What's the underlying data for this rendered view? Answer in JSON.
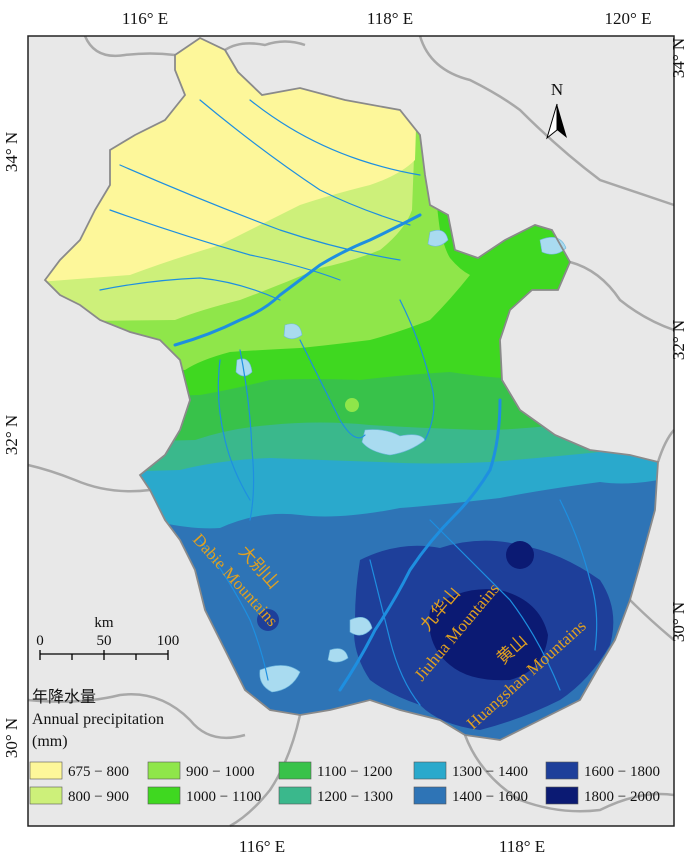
{
  "north_arrow": "N",
  "top_ticks": [
    "116° E",
    "118° E",
    "120° E"
  ],
  "bottom_ticks": [
    "116° E",
    "118° E"
  ],
  "left_ticks": [
    "34° N",
    "32° N",
    "30° N"
  ],
  "right_ticks": [
    "34° N",
    "32° N",
    "30° N"
  ],
  "scale": {
    "unit": "km",
    "labels": [
      "0",
      "50",
      "100"
    ]
  },
  "legend": {
    "title_cn": "年降水量",
    "title_en": "Annual precipitation",
    "unit": "(mm)",
    "classes": [
      {
        "label": "675 − 800",
        "color": "#fdf79a"
      },
      {
        "label": "800 − 900",
        "color": "#cdf07a"
      },
      {
        "label": "900 − 1000",
        "color": "#8fe64a"
      },
      {
        "label": "1000 − 1100",
        "color": "#3fd820"
      },
      {
        "label": "1100 − 1200",
        "color": "#38c24a"
      },
      {
        "label": "1200 − 1300",
        "color": "#3ab88c"
      },
      {
        "label": "1300 − 1400",
        "color": "#2aa9cc"
      },
      {
        "label": "1400 − 1600",
        "color": "#2e74b6"
      },
      {
        "label": "1600 − 1800",
        "color": "#1e3f9a"
      },
      {
        "label": "1800 − 2000",
        "color": "#0b1a73"
      }
    ]
  },
  "mountains": [
    {
      "cn": "大别山",
      "en": "Dabie Mountains"
    },
    {
      "cn": "九华山",
      "en": "Jiuhua Mountains"
    },
    {
      "cn": "黄山",
      "en": "Huangshan Mountains"
    }
  ],
  "colors": {
    "neighbor": "#e8e8e8",
    "border": "#aaaaaa",
    "river": "#1e8fe0",
    "lake": "#a9dbf0"
  }
}
